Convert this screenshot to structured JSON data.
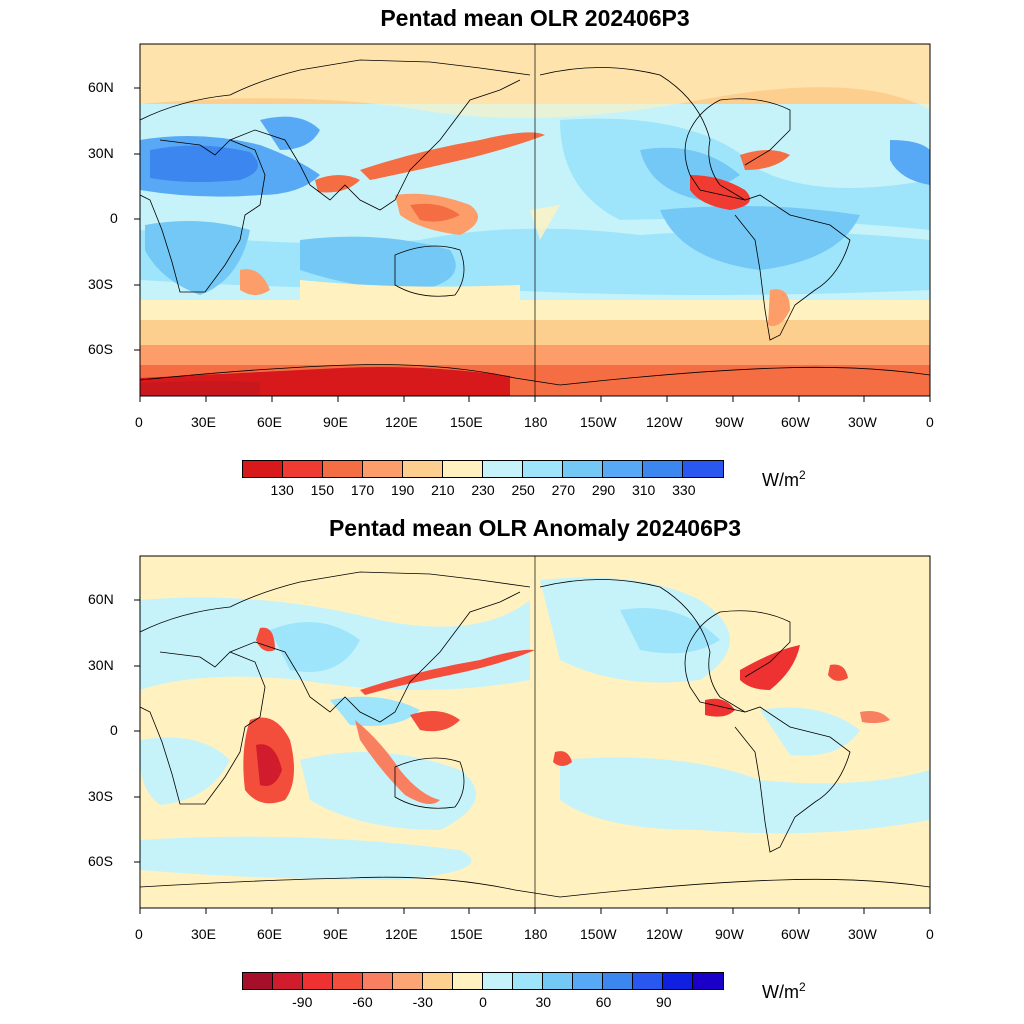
{
  "panels": [
    {
      "title": "Pentad mean OLR 202406P3",
      "lat_labels": [
        "60N",
        "30N",
        "0",
        "30S",
        "60S"
      ],
      "lon_labels": [
        "0",
        "30E",
        "60E",
        "90E",
        "120E",
        "150E",
        "180",
        "150W",
        "120W",
        "90W",
        "60W",
        "30W",
        "0"
      ],
      "colorbar": {
        "colors": [
          "#d7191c",
          "#f03b32",
          "#f46d43",
          "#fc9d6a",
          "#fdcf8e",
          "#fff2c0",
          "#c6f3fa",
          "#9ee5fb",
          "#73c8f5",
          "#58a9f5",
          "#3c86f0",
          "#2858f0"
        ],
        "labels": [
          "130",
          "150",
          "170",
          "190",
          "210",
          "230",
          "250",
          "270",
          "290",
          "310",
          "330"
        ],
        "unit": "W/m",
        "unit_sup": "2"
      }
    },
    {
      "title": "Pentad mean OLR Anomaly 202406P3",
      "lat_labels": [
        "60N",
        "30N",
        "0",
        "30S",
        "60S"
      ],
      "lon_labels": [
        "0",
        "30E",
        "60E",
        "90E",
        "120E",
        "150E",
        "180",
        "150W",
        "120W",
        "90W",
        "60W",
        "30W",
        "0"
      ],
      "colorbar": {
        "colors": [
          "#a50f2a",
          "#d01c2c",
          "#ee3232",
          "#f34e3c",
          "#f88060",
          "#fba674",
          "#fdd090",
          "#fff2c0",
          "#c6f3fa",
          "#9ee5fb",
          "#73c8f5",
          "#58a9f5",
          "#3c86f0",
          "#2858f0",
          "#1020e0",
          "#1a00c8"
        ],
        "labels": [
          "-90",
          "-60",
          "-30",
          "0",
          "30",
          "60",
          "90"
        ],
        "label_slots": [
          1,
          4,
          7,
          10,
          13,
          16,
          19
        ],
        "unit": "W/m",
        "unit_sup": "2"
      }
    }
  ]
}
